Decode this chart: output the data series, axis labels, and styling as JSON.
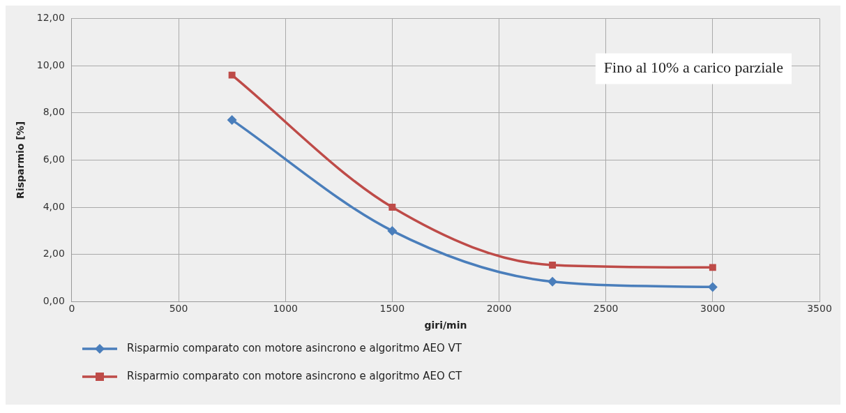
{
  "chart_data": {
    "type": "line",
    "xlabel": "giri/min",
    "ylabel": "Risparmio [%]",
    "xlim": [
      0,
      3500
    ],
    "xticks": [
      0,
      500,
      1000,
      1500,
      2000,
      2500,
      3000,
      3500
    ],
    "ylim": [
      0,
      12
    ],
    "yticks": [
      {
        "value": 0,
        "label": "0,00"
      },
      {
        "value": 2,
        "label": "2,00"
      },
      {
        "value": 4,
        "label": "4,00"
      },
      {
        "value": 6,
        "label": "6,00"
      },
      {
        "value": 8,
        "label": "8,00"
      },
      {
        "value": 10,
        "label": "10,00"
      },
      {
        "value": 12,
        "label": "12,00"
      }
    ],
    "x": [
      750,
      1500,
      2250,
      3000
    ],
    "series": [
      {
        "name": "Risparmio comparato con motore asincrono e algoritmo AEO VT",
        "color": "#4a7ebb",
        "values": [
          7.7,
          3.0,
          0.85,
          0.62
        ],
        "marker": "diamond"
      },
      {
        "name": "Risparmio comparato con motore asincrono e algoritmo AEO CT",
        "color": "#be4b48",
        "values": [
          9.6,
          4.0,
          1.55,
          1.45
        ],
        "marker": "square"
      }
    ],
    "annotations": [
      "Fino al 10% a carico parziale"
    ],
    "grid": true,
    "legend": "bottom"
  }
}
